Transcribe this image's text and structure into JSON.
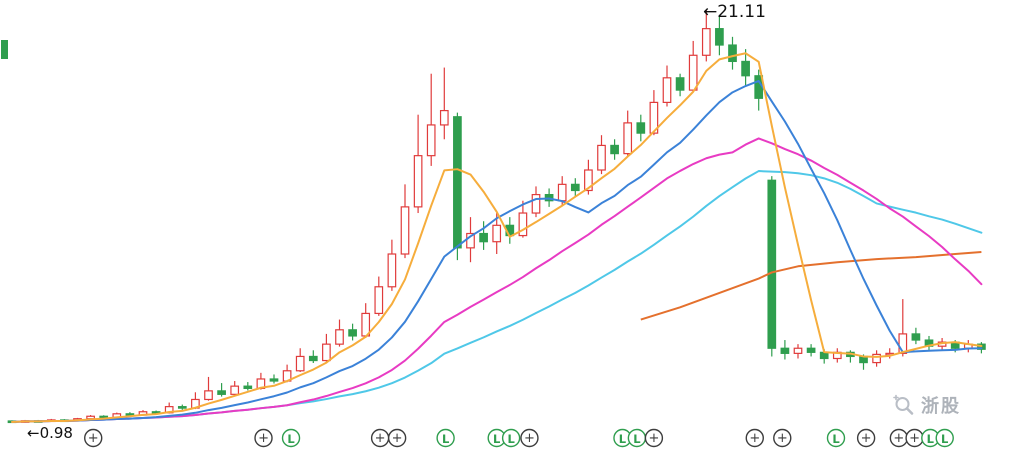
{
  "annotations": {
    "peak_label": "←21.11",
    "start_label": "←0.98"
  },
  "watermark": {
    "text": "浙股"
  },
  "colors": {
    "up": "#e03b3b",
    "down": "#2f9e4e",
    "marker_plus": "#3d3d3d",
    "marker_L": "#2f9e4e",
    "annotation": "#111111",
    "watermark": "#aeb3ba"
  },
  "chart_data": {
    "type": "candlestick",
    "title": "",
    "xlabel": "",
    "ylabel": "",
    "grid": false,
    "legend": false,
    "price_range": [
      1.0,
      21.11
    ],
    "peak_price": 21.11,
    "start_price": 0.98,
    "candles": [
      [
        1.05,
        1.08,
        0.97,
        1.0
      ],
      [
        1.0,
        1.1,
        0.97,
        1.06
      ],
      [
        1.06,
        1.1,
        1.0,
        1.03
      ],
      [
        1.03,
        1.15,
        1.01,
        1.1
      ],
      [
        1.1,
        1.14,
        1.02,
        1.06
      ],
      [
        1.06,
        1.2,
        1.04,
        1.16
      ],
      [
        1.16,
        1.34,
        1.12,
        1.28
      ],
      [
        1.28,
        1.33,
        1.17,
        1.22
      ],
      [
        1.22,
        1.46,
        1.2,
        1.4
      ],
      [
        1.4,
        1.48,
        1.29,
        1.34
      ],
      [
        1.34,
        1.58,
        1.31,
        1.5
      ],
      [
        1.5,
        1.56,
        1.39,
        1.45
      ],
      [
        1.45,
        1.95,
        1.42,
        1.75
      ],
      [
        1.75,
        1.85,
        1.59,
        1.68
      ],
      [
        1.68,
        2.45,
        1.63,
        2.1
      ],
      [
        2.1,
        3.2,
        2.04,
        2.52
      ],
      [
        2.52,
        2.9,
        2.24,
        2.35
      ],
      [
        2.35,
        3.0,
        2.3,
        2.75
      ],
      [
        2.75,
        2.95,
        2.54,
        2.64
      ],
      [
        2.64,
        3.4,
        2.58,
        3.1
      ],
      [
        3.1,
        3.32,
        2.88,
        3.0
      ],
      [
        3.0,
        3.8,
        2.94,
        3.5
      ],
      [
        3.5,
        4.6,
        3.44,
        4.2
      ],
      [
        4.2,
        4.5,
        3.88,
        4.0
      ],
      [
        4.0,
        5.3,
        3.94,
        4.8
      ],
      [
        4.8,
        6.0,
        4.68,
        5.5
      ],
      [
        5.5,
        5.8,
        4.98,
        5.2
      ],
      [
        5.2,
        6.8,
        5.1,
        6.3
      ],
      [
        6.3,
        8.1,
        6.18,
        7.6
      ],
      [
        7.6,
        9.9,
        7.4,
        9.2
      ],
      [
        9.2,
        12.6,
        9.0,
        11.5
      ],
      [
        11.5,
        16.0,
        11.2,
        14.0
      ],
      [
        14.0,
        18.0,
        13.5,
        15.5
      ],
      [
        15.5,
        18.3,
        14.8,
        16.2
      ],
      [
        15.9,
        16.1,
        8.9,
        9.5
      ],
      [
        9.5,
        11.0,
        8.8,
        10.2
      ],
      [
        10.2,
        10.8,
        9.4,
        9.8
      ],
      [
        9.8,
        11.2,
        9.2,
        10.6
      ],
      [
        10.6,
        11.0,
        9.7,
        10.1
      ],
      [
        10.1,
        11.8,
        10.0,
        11.2
      ],
      [
        11.2,
        12.5,
        11.0,
        12.1
      ],
      [
        12.1,
        12.4,
        11.5,
        11.8
      ],
      [
        11.8,
        13.0,
        11.6,
        12.6
      ],
      [
        12.6,
        12.9,
        12.0,
        12.3
      ],
      [
        12.3,
        13.8,
        12.1,
        13.3
      ],
      [
        13.3,
        15.0,
        13.1,
        14.5
      ],
      [
        14.5,
        14.8,
        13.8,
        14.1
      ],
      [
        14.1,
        16.2,
        14.0,
        15.6
      ],
      [
        15.6,
        16.0,
        14.7,
        15.1
      ],
      [
        15.1,
        17.2,
        15.0,
        16.6
      ],
      [
        16.6,
        18.4,
        16.4,
        17.8
      ],
      [
        17.8,
        18.0,
        16.9,
        17.2
      ],
      [
        17.2,
        19.6,
        17.1,
        18.9
      ],
      [
        18.9,
        21.11,
        18.6,
        20.2
      ],
      [
        20.2,
        20.8,
        18.9,
        19.4
      ],
      [
        19.4,
        19.8,
        18.2,
        18.6
      ],
      [
        18.6,
        19.2,
        17.4,
        17.9
      ],
      [
        17.9,
        18.2,
        16.2,
        16.8
      ],
      [
        12.8,
        13.0,
        4.2,
        4.6
      ],
      [
        4.6,
        5.0,
        4.05,
        4.35
      ],
      [
        4.35,
        4.8,
        4.1,
        4.6
      ],
      [
        4.6,
        4.8,
        4.2,
        4.4
      ],
      [
        4.4,
        4.55,
        3.85,
        4.1
      ],
      [
        4.1,
        4.6,
        3.9,
        4.4
      ],
      [
        4.4,
        4.5,
        3.9,
        4.2
      ],
      [
        4.2,
        4.3,
        3.55,
        3.9
      ],
      [
        3.9,
        4.5,
        3.7,
        4.3
      ],
      [
        4.3,
        4.6,
        4.1,
        4.35
      ],
      [
        4.35,
        7.0,
        4.2,
        5.3
      ],
      [
        5.3,
        5.6,
        4.8,
        5.0
      ],
      [
        5.0,
        5.2,
        4.5,
        4.7
      ],
      [
        4.7,
        5.1,
        4.5,
        4.9
      ],
      [
        4.9,
        5.0,
        4.4,
        4.6
      ],
      [
        4.6,
        5.0,
        4.4,
        4.8
      ],
      [
        4.8,
        4.9,
        4.35,
        4.55
      ]
    ],
    "ma_series": [
      {
        "name": "ma-fast",
        "period": 5,
        "color": "#f6ad3c"
      },
      {
        "name": "ma-mid",
        "period": 11,
        "color": "#3b82d8"
      },
      {
        "name": "ma-slow",
        "period": 22,
        "color": "#e83bc3"
      },
      {
        "name": "ma-long",
        "period": 33,
        "color": "#4fc8e8"
      }
    ],
    "year_line": {
      "name": "ma-year",
      "color": "#e4702d",
      "points": [
        [
          48,
          6.0
        ],
        [
          51,
          6.6
        ],
        [
          54,
          7.3
        ],
        [
          57,
          8.0
        ],
        [
          58,
          8.3
        ],
        [
          60,
          8.6
        ],
        [
          63,
          8.8
        ],
        [
          66,
          8.95
        ],
        [
          69,
          9.05
        ],
        [
          72,
          9.2
        ],
        [
          74,
          9.3
        ]
      ]
    },
    "marker_labels": {
      "plus": "+",
      "L": "L"
    },
    "markers": [
      {
        "i": 6.2,
        "type": "plus"
      },
      {
        "i": 19.2,
        "type": "plus"
      },
      {
        "i": 21.3,
        "type": "L"
      },
      {
        "i": 28.1,
        "type": "plus"
      },
      {
        "i": 29.4,
        "type": "plus"
      },
      {
        "i": 33.1,
        "type": "L"
      },
      {
        "i": 37.0,
        "type": "L"
      },
      {
        "i": 38.1,
        "type": "L"
      },
      {
        "i": 39.5,
        "type": "plus"
      },
      {
        "i": 46.6,
        "type": "L"
      },
      {
        "i": 47.7,
        "type": "L"
      },
      {
        "i": 49.0,
        "type": "plus"
      },
      {
        "i": 56.7,
        "type": "plus"
      },
      {
        "i": 58.8,
        "type": "plus"
      },
      {
        "i": 62.9,
        "type": "L"
      },
      {
        "i": 65.2,
        "type": "plus"
      },
      {
        "i": 67.7,
        "type": "plus"
      },
      {
        "i": 68.9,
        "type": "plus"
      },
      {
        "i": 70.1,
        "type": "L"
      },
      {
        "i": 71.2,
        "type": "L"
      }
    ]
  }
}
